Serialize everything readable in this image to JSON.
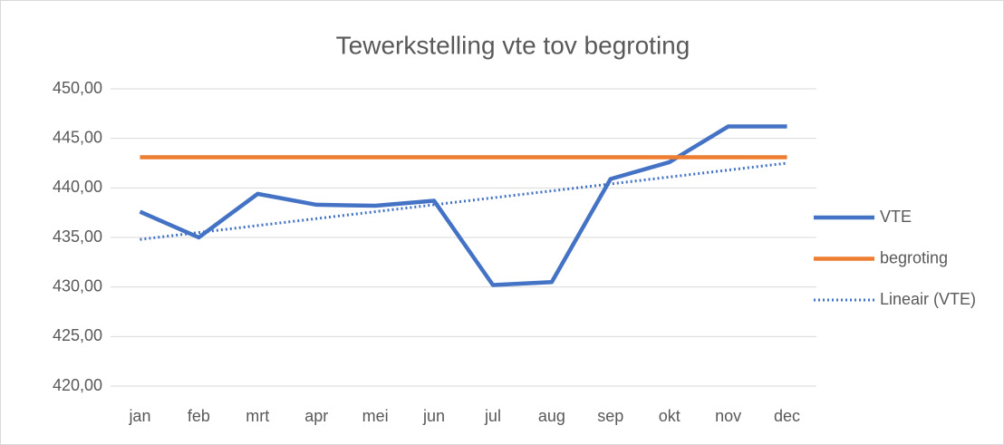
{
  "chart_data": {
    "type": "line",
    "title": "Tewerkstelling vte tov begroting",
    "categories": [
      "jan",
      "feb",
      "mrt",
      "apr",
      "mei",
      "jun",
      "jul",
      "aug",
      "sep",
      "okt",
      "nov",
      "dec"
    ],
    "series": [
      {
        "name": "VTE",
        "color": "#4472c4",
        "line_style": "solid",
        "values": [
          437.6,
          435.0,
          439.4,
          438.3,
          438.2,
          438.7,
          430.2,
          430.5,
          440.9,
          442.6,
          446.2,
          446.2
        ]
      },
      {
        "name": "begroting",
        "color": "#ed7d31",
        "line_style": "solid",
        "values": [
          443.1,
          443.1,
          443.1,
          443.1,
          443.1,
          443.1,
          443.1,
          443.1,
          443.1,
          443.1,
          443.1,
          443.1
        ]
      },
      {
        "name": "Lineair (VTE)",
        "color": "#4472c4",
        "line_style": "dotted",
        "values": [
          434.8,
          435.5,
          436.2,
          436.9,
          437.6,
          438.3,
          439.0,
          439.7,
          440.4,
          441.1,
          441.8,
          442.5
        ]
      }
    ],
    "ylim": [
      420,
      450
    ],
    "yticks": [
      {
        "value": 420,
        "label": "420,00"
      },
      {
        "value": 425,
        "label": "425,00"
      },
      {
        "value": 430,
        "label": "430,00"
      },
      {
        "value": 435,
        "label": "435,00"
      },
      {
        "value": 440,
        "label": "440,00"
      },
      {
        "value": 445,
        "label": "445,00"
      },
      {
        "value": 450,
        "label": "450,00"
      }
    ],
    "grid": true,
    "legend": "right"
  }
}
